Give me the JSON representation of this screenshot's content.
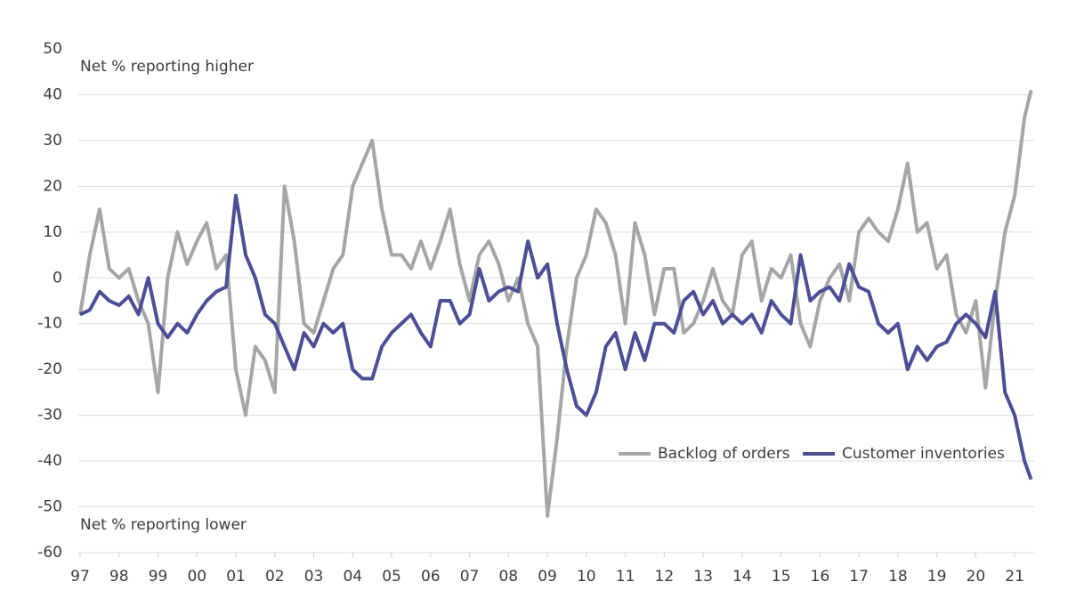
{
  "chart_data": {
    "type": "line",
    "annotations": [
      "Net % reporting higher",
      "Net % reporting lower"
    ],
    "x": [
      1997,
      1997.25,
      1997.5,
      1997.75,
      1998,
      1998.25,
      1998.5,
      1998.75,
      1999,
      1999.25,
      1999.5,
      1999.75,
      2000,
      2000.25,
      2000.5,
      2000.75,
      2001,
      2001.25,
      2001.5,
      2001.75,
      2002,
      2002.25,
      2002.5,
      2002.75,
      2003,
      2003.25,
      2003.5,
      2003.75,
      2004,
      2004.25,
      2004.5,
      2004.75,
      2005,
      2005.25,
      2005.5,
      2005.75,
      2006,
      2006.25,
      2006.5,
      2006.75,
      2007,
      2007.25,
      2007.5,
      2007.75,
      2008,
      2008.25,
      2008.5,
      2008.75,
      2009,
      2009.25,
      2009.5,
      2009.75,
      2010,
      2010.25,
      2010.5,
      2010.75,
      2011,
      2011.25,
      2011.5,
      2011.75,
      2012,
      2012.25,
      2012.5,
      2012.75,
      2013,
      2013.25,
      2013.5,
      2013.75,
      2014,
      2014.25,
      2014.5,
      2014.75,
      2015,
      2015.25,
      2015.5,
      2015.75,
      2016,
      2016.25,
      2016.5,
      2016.75,
      2017,
      2017.25,
      2017.5,
      2017.75,
      2018,
      2018.25,
      2018.5,
      2018.75,
      2019,
      2019.25,
      2019.5,
      2019.75,
      2020,
      2020.25,
      2020.5,
      2020.75,
      2021,
      2021.25,
      2021.42
    ],
    "series": [
      {
        "name": "Backlog of orders",
        "color": "#a6a6a6",
        "values": [
          -8,
          5,
          15,
          2,
          0,
          2,
          -5,
          -10,
          -25,
          0,
          10,
          3,
          8,
          12,
          2,
          5,
          -20,
          -30,
          -15,
          -18,
          -25,
          20,
          8,
          -10,
          -12,
          -5,
          2,
          5,
          20,
          25,
          30,
          15,
          5,
          5,
          2,
          8,
          2,
          8,
          15,
          3,
          -5,
          5,
          8,
          3,
          -5,
          0,
          -10,
          -15,
          -52,
          -35,
          -15,
          0,
          5,
          15,
          12,
          5,
          -10,
          12,
          5,
          -8,
          2,
          2,
          -12,
          -10,
          -5,
          2,
          -5,
          -8,
          5,
          8,
          -5,
          2,
          0,
          5,
          -10,
          -15,
          -5,
          0,
          3,
          -5,
          10,
          13,
          10,
          8,
          15,
          25,
          10,
          12,
          2,
          5,
          -8,
          -12,
          -5,
          -24,
          -5,
          10,
          18,
          35,
          41
        ]
      },
      {
        "name": "Customer inventories",
        "color": "#4e4d96",
        "values": [
          -8,
          -7,
          -3,
          -5,
          -6,
          -4,
          -8,
          0,
          -10,
          -13,
          -10,
          -12,
          -8,
          -5,
          -3,
          -2,
          18,
          5,
          0,
          -8,
          -10,
          -15,
          -20,
          -12,
          -15,
          -10,
          -12,
          -10,
          -20,
          -22,
          -22,
          -15,
          -12,
          -10,
          -8,
          -12,
          -15,
          -5,
          -5,
          -10,
          -8,
          2,
          -5,
          -3,
          -2,
          -3,
          8,
          0,
          3,
          -10,
          -20,
          -28,
          -30,
          -25,
          -15,
          -12,
          -20,
          -12,
          -18,
          -10,
          -10,
          -12,
          -5,
          -3,
          -8,
          -5,
          -10,
          -8,
          -10,
          -8,
          -12,
          -5,
          -8,
          -10,
          5,
          -5,
          -3,
          -2,
          -5,
          3,
          -2,
          -3,
          -10,
          -12,
          -10,
          -20,
          -15,
          -18,
          -15,
          -14,
          -10,
          -8,
          -10,
          -13,
          -3,
          -25,
          -30,
          -40,
          -44
        ]
      }
    ],
    "xlim": [
      1997,
      2021.5
    ],
    "xticks": [
      {
        "value": 1997,
        "label": "97"
      },
      {
        "value": 1998,
        "label": "98"
      },
      {
        "value": 1999,
        "label": "99"
      },
      {
        "value": 2000,
        "label": "00"
      },
      {
        "value": 2001,
        "label": "01"
      },
      {
        "value": 2002,
        "label": "02"
      },
      {
        "value": 2003,
        "label": "03"
      },
      {
        "value": 2004,
        "label": "04"
      },
      {
        "value": 2005,
        "label": "05"
      },
      {
        "value": 2006,
        "label": "06"
      },
      {
        "value": 2007,
        "label": "07"
      },
      {
        "value": 2008,
        "label": "08"
      },
      {
        "value": 2009,
        "label": "09"
      },
      {
        "value": 2010,
        "label": "10"
      },
      {
        "value": 2011,
        "label": "11"
      },
      {
        "value": 2012,
        "label": "12"
      },
      {
        "value": 2013,
        "label": "13"
      },
      {
        "value": 2014,
        "label": "14"
      },
      {
        "value": 2015,
        "label": "15"
      },
      {
        "value": 2016,
        "label": "16"
      },
      {
        "value": 2017,
        "label": "17"
      },
      {
        "value": 2018,
        "label": "18"
      },
      {
        "value": 2019,
        "label": "19"
      },
      {
        "value": 2020,
        "label": "20"
      },
      {
        "value": 2021,
        "label": "21"
      }
    ],
    "ylim": [
      -60,
      50
    ],
    "yticks": [
      -60,
      -50,
      -40,
      -30,
      -20,
      -10,
      0,
      10,
      20,
      30,
      40,
      50
    ],
    "grid": true
  }
}
